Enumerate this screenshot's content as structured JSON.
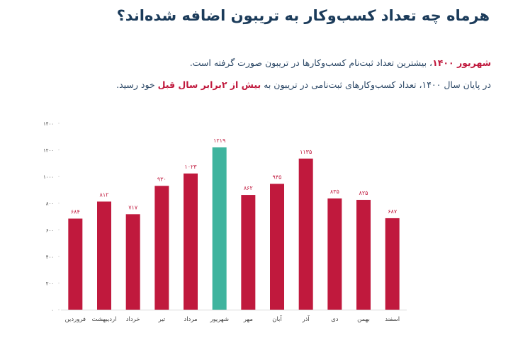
{
  "title": "هرماه چه تعداد کسب‌وکار به تریبون اضافه شده‌اند؟",
  "notes": {
    "line1_highlight": "شهریور ۱۴۰۰",
    "line1_rest": "، بیشترین تعداد ثبت‌نام کسب‌وکارها در تریبون صورت گرفته است.",
    "line2_part1": "در پایان سال ۱۴۰۰، تعداد کسب‌وکارهای ثبت‌نامی در تریبون به",
    "line2_highlight": "بیش از ۲برابر سال قبل",
    "line2_part2": "خود رسید."
  },
  "colors": {
    "bar": "#c0193d",
    "highlight_bar": "#3fb49e",
    "value_label": "#c0193d",
    "axis_text": "#444444",
    "grid": "#d9d9d9"
  },
  "chart_data": {
    "type": "bar",
    "categories": [
      "فروردین",
      "اردیبهشت",
      "خرداد",
      "تیر",
      "مرداد",
      "شهریور",
      "مهر",
      "آبان",
      "آذر",
      "دی",
      "بهمن",
      "اسفند"
    ],
    "values": [
      684,
      812,
      717,
      930,
      1023,
      1219,
      862,
      945,
      1135,
      835,
      825,
      687
    ],
    "value_labels": [
      "۶۸۴",
      "۸۱۲",
      "۷۱۷",
      "۹۳۰",
      "۱۰۲۳",
      "۱۲۱۹",
      "۸۶۲",
      "۹۴۵",
      "۱۱۳۵",
      "۸۳۵",
      "۸۲۵",
      "۶۸۷"
    ],
    "highlight_category": "شهریور",
    "ylim": [
      0,
      1400
    ],
    "yticks": [
      0,
      200,
      400,
      600,
      800,
      1000,
      1200,
      1400
    ],
    "ytick_labels": [
      "۰",
      "۲۰۰",
      "۴۰۰",
      "۶۰۰",
      "۸۰۰",
      "۱۰۰۰",
      "۱۲۰۰",
      "۱۴۰۰"
    ],
    "xlabel": "",
    "ylabel": "",
    "grid": false
  }
}
